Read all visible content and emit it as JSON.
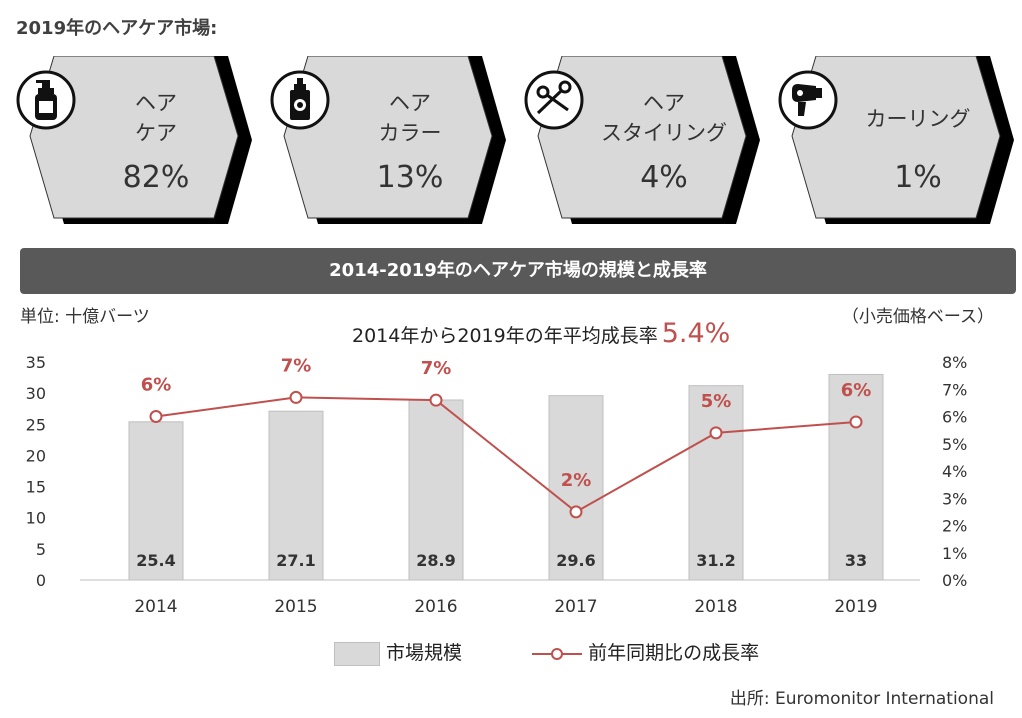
{
  "title": "2019年のヘアケア市場:",
  "cards": [
    {
      "label": "ヘア\nケア",
      "pct": "82%",
      "icon": "shampoo-bottle-icon"
    },
    {
      "label": "ヘア\nカラー",
      "pct": "13%",
      "icon": "hair-dye-bottle-icon"
    },
    {
      "label": "ヘア\nスタイリング",
      "pct": "4%",
      "icon": "scissors-icon"
    },
    {
      "label": "カーリング",
      "pct": "1%",
      "icon": "hair-dryer-icon"
    }
  ],
  "band_title": "2014-2019年のヘアケア市場の規模と成長率",
  "unit_left": "単位: 十億バーツ",
  "unit_right": "（小売価格ベース）",
  "cagr_label": "2014年から2019年の年平均成長率",
  "cagr_value": "5.4%",
  "colors": {
    "bar": "#d9d9d9",
    "bar_border": "#bfbfbf",
    "line": "#c0504d",
    "band": "#595959",
    "card": "#d9d9d9"
  },
  "chart_data": {
    "type": "bar+line",
    "categories": [
      "2014",
      "2015",
      "2016",
      "2017",
      "2018",
      "2019"
    ],
    "series": [
      {
        "name": "市場規模",
        "type": "bar",
        "axis": "left",
        "values": [
          25.4,
          27.1,
          28.9,
          29.6,
          31.2,
          33
        ],
        "labels": [
          "25.4",
          "27.1",
          "28.9",
          "29.6",
          "31.2",
          "33"
        ]
      },
      {
        "name": "前年同期比の成長率",
        "type": "line",
        "axis": "right",
        "values": [
          6.0,
          6.7,
          6.6,
          2.5,
          5.4,
          5.8
        ],
        "labels": [
          "6%",
          "7%",
          "7%",
          "2%",
          "5%",
          "6%"
        ]
      }
    ],
    "y_left": {
      "min": 0,
      "max": 35,
      "ticks": [
        "0",
        "5",
        "10",
        "15",
        "20",
        "25",
        "30",
        "35"
      ]
    },
    "y_right": {
      "min": 0,
      "max": 8,
      "ticks": [
        "0%",
        "1%",
        "2%",
        "3%",
        "4%",
        "5%",
        "6%",
        "7%",
        "8%"
      ]
    },
    "legend_position": "bottom"
  },
  "source": "出所: Euromonitor International"
}
